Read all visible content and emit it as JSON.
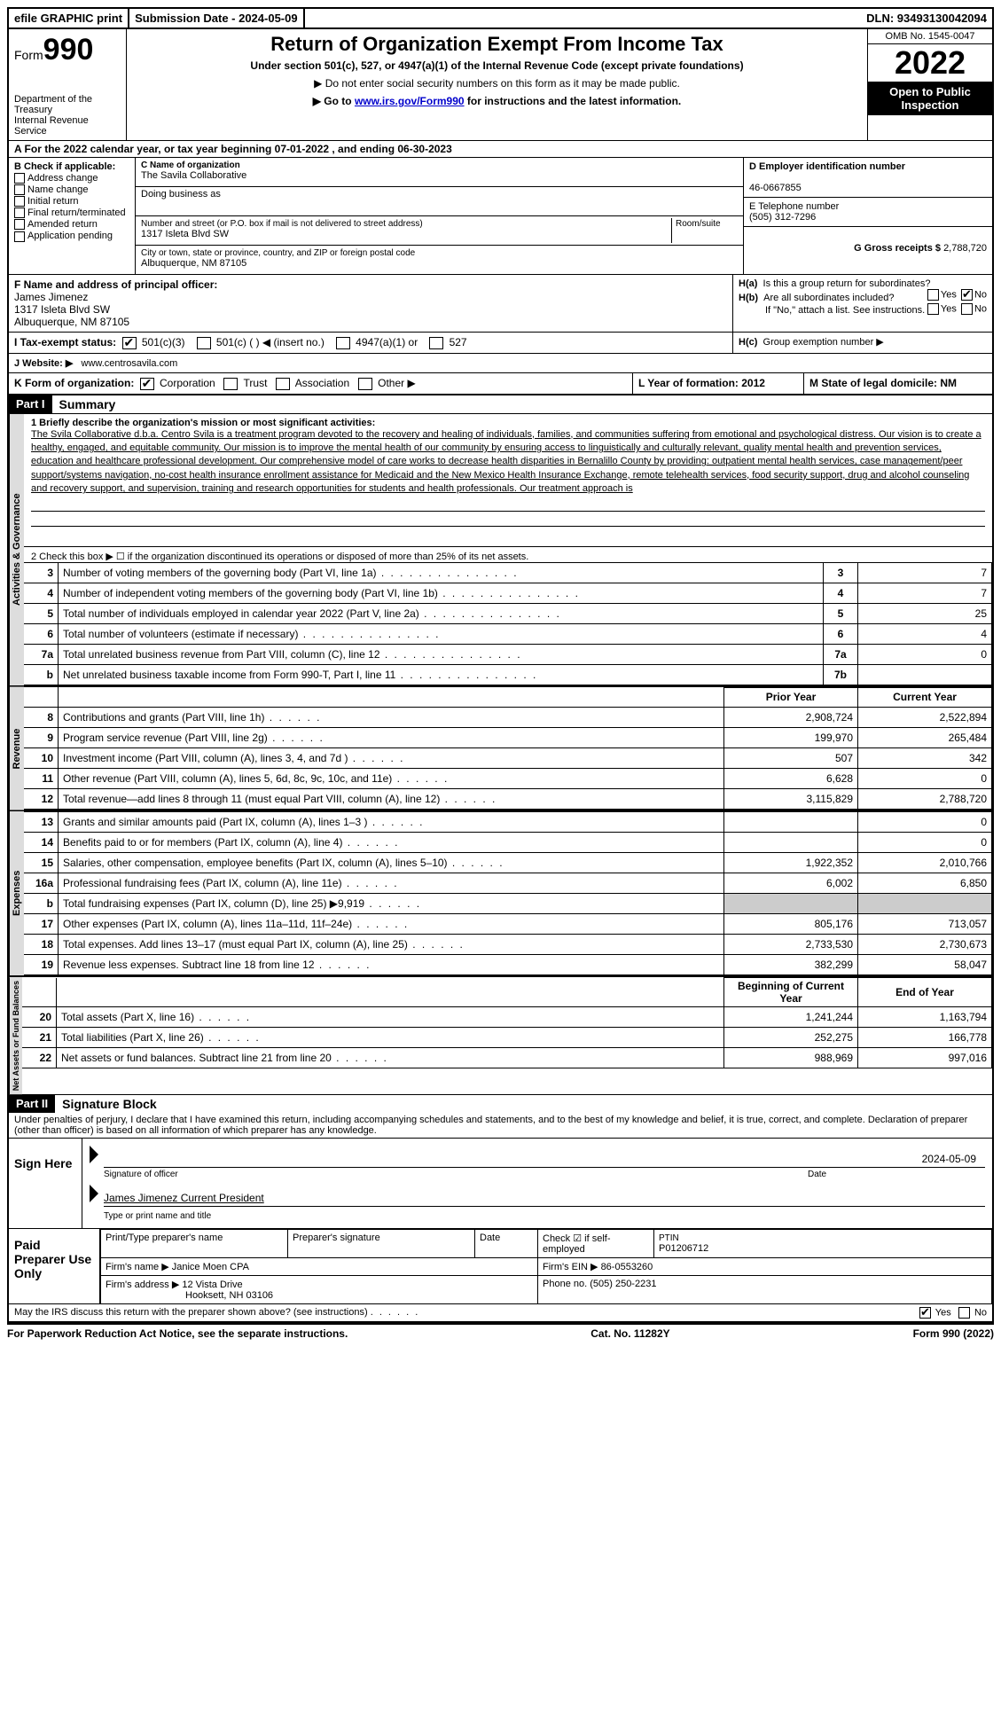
{
  "top": {
    "efile": "efile GRAPHIC print",
    "submission": "Submission Date - 2024-05-09",
    "dln": "DLN: 93493130042094"
  },
  "header": {
    "form_prefix": "Form",
    "form_num": "990",
    "dept": "Department of the Treasury\nInternal Revenue Service",
    "title": "Return of Organization Exempt From Income Tax",
    "subtitle": "Under section 501(c), 527, or 4947(a)(1) of the Internal Revenue Code (except private foundations)",
    "note1": "▶ Do not enter social security numbers on this form as it may be made public.",
    "note2_pre": "▶ Go to ",
    "note2_link": "www.irs.gov/Form990",
    "note2_post": " for instructions and the latest information.",
    "omb": "OMB No. 1545-0047",
    "year": "2022",
    "open": "Open to Public Inspection"
  },
  "sectionA": "A  For the 2022 calendar year, or tax year beginning 07-01-2022   , and ending 06-30-2023",
  "B": {
    "label": "B Check if applicable:",
    "items": [
      "Address change",
      "Name change",
      "Initial return",
      "Final return/terminated",
      "Amended return",
      "Application pending"
    ]
  },
  "C": {
    "name_label": "C Name of organization",
    "name": "The Savila Collaborative",
    "dba_label": "Doing business as",
    "dba": "",
    "addr_label": "Number and street (or P.O. box if mail is not delivered to street address)",
    "addr": "1317 Isleta Blvd SW",
    "room_label": "Room/suite",
    "city_label": "City or town, state or province, country, and ZIP or foreign postal code",
    "city": "Albuquerque, NM  87105"
  },
  "D": {
    "label": "D Employer identification number",
    "value": "46-0667855"
  },
  "E": {
    "label": "E Telephone number",
    "value": "(505) 312-7296"
  },
  "G": {
    "label": "G Gross receipts $",
    "value": "2,788,720"
  },
  "F": {
    "label": "F  Name and address of principal officer:",
    "name": "James Jimenez",
    "addr1": "1317 Isleta Blvd SW",
    "addr2": "Albuquerque, NM  87105"
  },
  "H": {
    "a": "Is this a group return for subordinates?",
    "b": "Are all subordinates included?",
    "b_note": "If \"No,\" attach a list. See instructions.",
    "c": "Group exemption number ▶"
  },
  "I": {
    "label": "I  Tax-exempt status:",
    "opts": [
      "501(c)(3)",
      "501(c) (  ) ◀ (insert no.)",
      "4947(a)(1) or",
      "527"
    ]
  },
  "J": {
    "label": "J  Website: ▶",
    "value": "www.centrosavila.com"
  },
  "K": {
    "label": "K Form of organization:",
    "opts": [
      "Corporation",
      "Trust",
      "Association",
      "Other ▶"
    ],
    "L": "L Year of formation: 2012",
    "M": "M State of legal domicile: NM"
  },
  "part1": {
    "header": "Part I",
    "title": "Summary",
    "vlabel1": "Activities & Governance",
    "vlabel2": "Revenue",
    "vlabel3": "Expenses",
    "vlabel4": "Net Assets or Fund Balances",
    "line1_label": "1   Briefly describe the organization's mission or most significant activities:",
    "mission": "The Svila Collaborative d.b.a. Centro Svila is a treatment program devoted to the recovery and healing of individuals, families, and communities suffering from emotional and psychological distress. Our vision is to create a healthy, engaged, and equitable community. Our mission is to improve the mental health of our community by ensuring access to linguistically and culturally relevant, quality mental health and prevention services, education and healthcare professional development. Our comprehensive model of care works to decrease health disparities in Bernalillo County by providing: outpatient mental health services, case management/peer support/systems navigation, no-cost health insurance enrollment assistance for Medicaid and the New Mexico Health Insurance Exchange, remote telehealth services, food security support, drug and alcohol counseling and recovery support, and supervision, training and research opportunities for students and health professionals. Our treatment approach is",
    "line2": "2   Check this box ▶ ☐ if the organization discontinued its operations or disposed of more than 25% of its net assets.",
    "rows_act": [
      {
        "n": "3",
        "d": "Number of voting members of the governing body (Part VI, line 1a)",
        "k": "3",
        "v": "7"
      },
      {
        "n": "4",
        "d": "Number of independent voting members of the governing body (Part VI, line 1b)",
        "k": "4",
        "v": "7"
      },
      {
        "n": "5",
        "d": "Total number of individuals employed in calendar year 2022 (Part V, line 2a)",
        "k": "5",
        "v": "25"
      },
      {
        "n": "6",
        "d": "Total number of volunteers (estimate if necessary)",
        "k": "6",
        "v": "4"
      },
      {
        "n": "7a",
        "d": "Total unrelated business revenue from Part VIII, column (C), line 12",
        "k": "7a",
        "v": "0"
      },
      {
        "n": "b",
        "d": "Net unrelated business taxable income from Form 990-T, Part I, line 11",
        "k": "7b",
        "v": ""
      }
    ],
    "col_headers": {
      "prior": "Prior Year",
      "current": "Current Year"
    },
    "rows_rev": [
      {
        "n": "8",
        "d": "Contributions and grants (Part VIII, line 1h)",
        "p": "2,908,724",
        "c": "2,522,894"
      },
      {
        "n": "9",
        "d": "Program service revenue (Part VIII, line 2g)",
        "p": "199,970",
        "c": "265,484"
      },
      {
        "n": "10",
        "d": "Investment income (Part VIII, column (A), lines 3, 4, and 7d )",
        "p": "507",
        "c": "342"
      },
      {
        "n": "11",
        "d": "Other revenue (Part VIII, column (A), lines 5, 6d, 8c, 9c, 10c, and 11e)",
        "p": "6,628",
        "c": "0"
      },
      {
        "n": "12",
        "d": "Total revenue—add lines 8 through 11 (must equal Part VIII, column (A), line 12)",
        "p": "3,115,829",
        "c": "2,788,720"
      }
    ],
    "rows_exp": [
      {
        "n": "13",
        "d": "Grants and similar amounts paid (Part IX, column (A), lines 1–3 )",
        "p": "",
        "c": "0"
      },
      {
        "n": "14",
        "d": "Benefits paid to or for members (Part IX, column (A), line 4)",
        "p": "",
        "c": "0"
      },
      {
        "n": "15",
        "d": "Salaries, other compensation, employee benefits (Part IX, column (A), lines 5–10)",
        "p": "1,922,352",
        "c": "2,010,766"
      },
      {
        "n": "16a",
        "d": "Professional fundraising fees (Part IX, column (A), line 11e)",
        "p": "6,002",
        "c": "6,850"
      },
      {
        "n": "b",
        "d": "Total fundraising expenses (Part IX, column (D), line 25) ▶9,919",
        "p": "grey",
        "c": "grey"
      },
      {
        "n": "17",
        "d": "Other expenses (Part IX, column (A), lines 11a–11d, 11f–24e)",
        "p": "805,176",
        "c": "713,057"
      },
      {
        "n": "18",
        "d": "Total expenses. Add lines 13–17 (must equal Part IX, column (A), line 25)",
        "p": "2,733,530",
        "c": "2,730,673"
      },
      {
        "n": "19",
        "d": "Revenue less expenses. Subtract line 18 from line 12",
        "p": "382,299",
        "c": "58,047"
      }
    ],
    "col_headers2": {
      "begin": "Beginning of Current Year",
      "end": "End of Year"
    },
    "rows_net": [
      {
        "n": "20",
        "d": "Total assets (Part X, line 16)",
        "p": "1,241,244",
        "c": "1,163,794"
      },
      {
        "n": "21",
        "d": "Total liabilities (Part X, line 26)",
        "p": "252,275",
        "c": "166,778"
      },
      {
        "n": "22",
        "d": "Net assets or fund balances. Subtract line 21 from line 20",
        "p": "988,969",
        "c": "997,016"
      }
    ]
  },
  "part2": {
    "header": "Part II",
    "title": "Signature Block",
    "perjury": "Under penalties of perjury, I declare that I have examined this return, including accompanying schedules and statements, and to the best of my knowledge and belief, it is true, correct, and complete. Declaration of preparer (other than officer) is based on all information of which preparer has any knowledge.",
    "sign_here": "Sign Here",
    "sig_officer": "Signature of officer",
    "sig_date": "2024-05-09",
    "sig_date_label": "Date",
    "officer_name": "James Jimenez  Current President",
    "type_name": "Type or print name and title",
    "paid_prep": "Paid Preparer Use Only",
    "prep_headers": [
      "Print/Type preparer's name",
      "Preparer's signature",
      "Date"
    ],
    "check_self": "Check ☑ if self-employed",
    "ptin_label": "PTIN",
    "ptin": "P01206712",
    "firm_name_label": "Firm's name    ▶",
    "firm_name": "Janice Moen CPA",
    "firm_ein_label": "Firm's EIN ▶",
    "firm_ein": "86-0553260",
    "firm_addr_label": "Firm's address ▶",
    "firm_addr": "12 Vista Drive",
    "firm_addr2": "Hooksett, NH  03106",
    "phone_label": "Phone no.",
    "phone": "(505) 250-2231",
    "discuss": "May the IRS discuss this return with the preparer shown above? (see instructions)",
    "yes": "Yes",
    "no": "No"
  },
  "footer": {
    "paperwork": "For Paperwork Reduction Act Notice, see the separate instructions.",
    "cat": "Cat. No. 11282Y",
    "form": "Form 990 (2022)"
  }
}
